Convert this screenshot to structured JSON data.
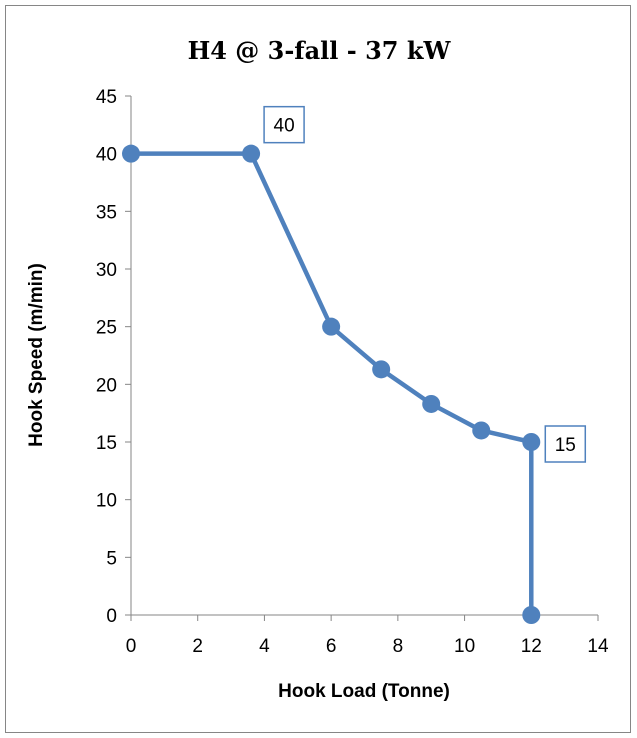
{
  "chart_data": {
    "type": "line",
    "title": "H4 @ 3-fall - 37 kW",
    "xlabel": "Hook Load (Tonne)",
    "ylabel": "Hook Speed (m/min)",
    "xlim": [
      0,
      14
    ],
    "ylim": [
      0,
      45
    ],
    "xticks": [
      0,
      2,
      4,
      6,
      8,
      10,
      12,
      14
    ],
    "yticks": [
      0,
      5,
      10,
      15,
      20,
      25,
      30,
      35,
      40,
      45
    ],
    "grid": false,
    "legend": "none",
    "series": [
      {
        "color": "#4f81bd",
        "marker": "circle",
        "points": [
          {
            "x": 0,
            "y": 40
          },
          {
            "x": 3.6,
            "y": 40
          },
          {
            "x": 6,
            "y": 25
          },
          {
            "x": 7.5,
            "y": 21.3
          },
          {
            "x": 9,
            "y": 18.3
          },
          {
            "x": 10.5,
            "y": 16
          },
          {
            "x": 12,
            "y": 15
          },
          {
            "x": 12,
            "y": 0
          }
        ]
      }
    ],
    "data_labels": [
      {
        "point_index": 1,
        "text": "40"
      },
      {
        "point_index": 6,
        "text": "15"
      }
    ]
  }
}
